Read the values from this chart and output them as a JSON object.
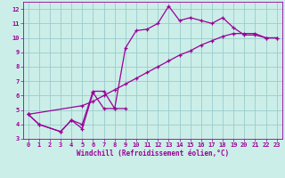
{
  "xlabel": "Windchill (Refroidissement éolien,°C)",
  "bg_color": "#cceee8",
  "line_color": "#990099",
  "grid_color": "#99cccc",
  "xlim": [
    -0.5,
    23.5
  ],
  "ylim": [
    3,
    12.5
  ],
  "xticks": [
    0,
    1,
    2,
    3,
    4,
    5,
    6,
    7,
    8,
    9,
    10,
    11,
    12,
    13,
    14,
    15,
    16,
    17,
    18,
    19,
    20,
    21,
    22,
    23
  ],
  "yticks": [
    3,
    4,
    5,
    6,
    7,
    8,
    9,
    10,
    11,
    12
  ],
  "curve1_x": [
    0,
    1,
    3,
    4,
    5,
    6,
    7,
    8,
    9,
    10,
    11,
    12,
    13,
    14,
    15,
    16,
    17,
    18,
    19,
    20,
    21,
    22,
    23
  ],
  "curve1_y": [
    4.7,
    4.0,
    3.5,
    4.3,
    4.0,
    6.3,
    6.3,
    5.1,
    9.3,
    10.5,
    10.6,
    11.0,
    12.2,
    11.2,
    11.4,
    11.2,
    11.0,
    11.4,
    10.7,
    10.2,
    10.2,
    10.0,
    10.0
  ],
  "curve2_x": [
    0,
    1,
    3,
    4,
    5,
    6,
    7,
    8,
    9
  ],
  "curve2_y": [
    4.7,
    4.0,
    3.5,
    4.3,
    3.7,
    6.2,
    5.1,
    5.1,
    5.1
  ],
  "curve3_x": [
    0,
    5,
    6,
    7,
    8,
    9,
    10,
    11,
    12,
    13,
    14,
    15,
    16,
    17,
    18,
    19,
    20,
    21,
    22,
    23
  ],
  "curve3_y": [
    4.7,
    5.3,
    5.6,
    6.0,
    6.4,
    6.8,
    7.2,
    7.6,
    8.0,
    8.4,
    8.8,
    9.1,
    9.5,
    9.8,
    10.1,
    10.3,
    10.3,
    10.3,
    10.0,
    10.0
  ]
}
